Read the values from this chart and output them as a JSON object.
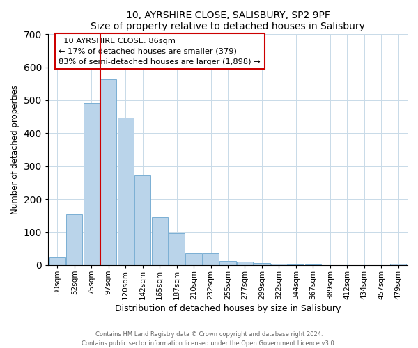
{
  "title1": "10, AYRSHIRE CLOSE, SALISBURY, SP2 9PF",
  "title2": "Size of property relative to detached houses in Salisbury",
  "xlabel": "Distribution of detached houses by size in Salisbury",
  "ylabel": "Number of detached properties",
  "bar_color": "#bad4ea",
  "bar_edge_color": "#7aafd4",
  "annotation_box_color": "#ffffff",
  "annotation_box_edge": "#cc0000",
  "vline_color": "#cc0000",
  "bin_labels": [
    "30sqm",
    "52sqm",
    "75sqm",
    "97sqm",
    "120sqm",
    "142sqm",
    "165sqm",
    "187sqm",
    "210sqm",
    "232sqm",
    "255sqm",
    "277sqm",
    "299sqm",
    "322sqm",
    "344sqm",
    "367sqm",
    "389sqm",
    "412sqm",
    "434sqm",
    "457sqm",
    "479sqm"
  ],
  "bar_heights": [
    25,
    155,
    492,
    563,
    447,
    273,
    145,
    98,
    36,
    35,
    13,
    10,
    7,
    5,
    3,
    2,
    1,
    0,
    0,
    0,
    5
  ],
  "ylim": [
    0,
    700
  ],
  "yticks": [
    0,
    100,
    200,
    300,
    400,
    500,
    600,
    700
  ],
  "property_label": "10 AYRSHIRE CLOSE: 86sqm",
  "pct_smaller": 17,
  "n_smaller": 379,
  "pct_larger_semi": 83,
  "n_larger_semi": 1898,
  "vline_bin_index": 3.0,
  "footer1": "Contains HM Land Registry data © Crown copyright and database right 2024.",
  "footer2": "Contains public sector information licensed under the Open Government Licence v3.0."
}
